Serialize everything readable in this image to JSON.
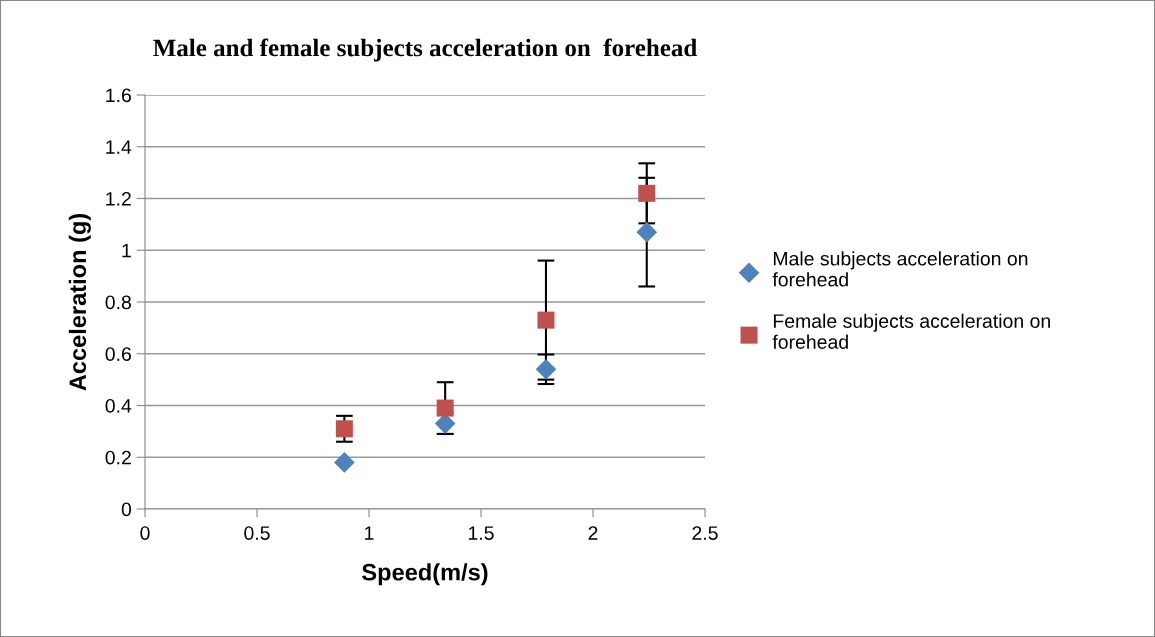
{
  "chart_data": {
    "type": "scatter",
    "title": "Male and female subjects acceleration on  forehead",
    "xlabel": "Speed(m/s)",
    "ylabel": "Acceleration (g)",
    "x": [
      0.89,
      1.34,
      1.79,
      2.24
    ],
    "series": [
      {
        "name": "Male subjects acceleration on forehead",
        "color": "#4f81bd",
        "marker": "diamond",
        "values": [
          0.18,
          0.33,
          0.54,
          1.07
        ],
        "errors": [
          null,
          0.04,
          0.057,
          0.21
        ]
      },
      {
        "name": "Female subjects acceleration on forehead",
        "color": "#c0504d",
        "marker": "square",
        "values": [
          0.31,
          0.39,
          0.73,
          1.22
        ],
        "errors": [
          0.05,
          0.1,
          0.23,
          0.116
        ]
      }
    ],
    "xlim": [
      0,
      2.5
    ],
    "xticks": [
      0,
      0.5,
      1,
      1.5,
      2,
      2.5
    ],
    "ylim": [
      0,
      1.6
    ],
    "yticks": [
      0,
      0.2,
      0.4,
      0.6,
      0.8,
      1,
      1.2,
      1.4,
      1.6
    ],
    "grid": "y",
    "legend": "right"
  }
}
